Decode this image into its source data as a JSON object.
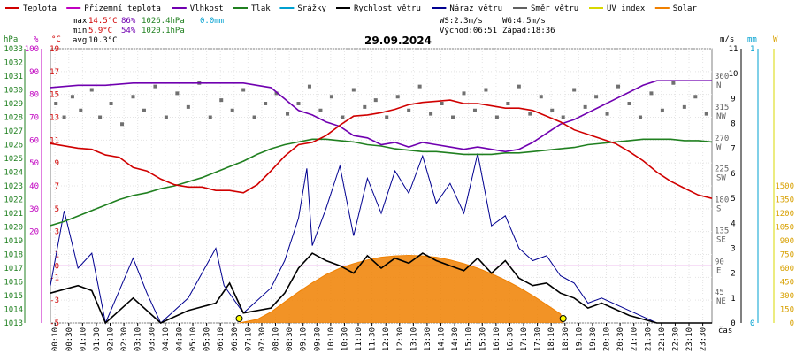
{
  "chart_data": {
    "type": "line",
    "title": "29.09.2024",
    "xlabel": "čas",
    "legend": [
      {
        "name": "Teplota",
        "color": "#d00000"
      },
      {
        "name": "Přízemní teplota",
        "color": "#c000c0"
      },
      {
        "name": "Vlhkost",
        "color": "#7000b0"
      },
      {
        "name": "Tlak",
        "color": "#208020"
      },
      {
        "name": "Srážky",
        "color": "#00a0d0"
      },
      {
        "name": "Rychlost větru",
        "color": "#000000"
      },
      {
        "name": "Náraz větru",
        "color": "#000090"
      },
      {
        "name": "Směr větru",
        "color": "#606060"
      },
      {
        "name": "UV index",
        "color": "#d8d800"
      },
      {
        "name": "Solar",
        "color": "#f08000"
      }
    ],
    "stats": {
      "max_temp": "14.5°C",
      "max_hum": "86%",
      "max_press": "1026.4hPa",
      "max_rain": "0.0mm",
      "min_temp": "5.9°C",
      "min_hum": "54%",
      "min_press": "1020.1hPa",
      "avg_temp": "10.3°C",
      "ws": "WS:2.3m/s",
      "wg": "WG:4.5m/s",
      "sunrise": "Východ:06:51",
      "sunset": "Západ:18:36",
      "max_label": "max",
      "min_label": "min",
      "avg_label": "avg"
    },
    "units": {
      "press": "hPa",
      "pct": "%",
      "temp": "°C",
      "ms": "m/s",
      "mm": "mm",
      "w": "W"
    },
    "x_ticks": [
      "00:10",
      "00:30",
      "01:10",
      "01:30",
      "02:10",
      "02:30",
      "03:10",
      "03:30",
      "04:10",
      "04:30",
      "05:10",
      "05:30",
      "06:10",
      "06:30",
      "07:10",
      "07:30",
      "08:10",
      "08:30",
      "09:10",
      "09:30",
      "10:10",
      "10:30",
      "11:10",
      "11:30",
      "12:10",
      "12:30",
      "13:10",
      "13:30",
      "14:10",
      "14:30",
      "15:10",
      "15:30",
      "16:10",
      "16:30",
      "17:10",
      "17:30",
      "18:10",
      "18:30",
      "19:10",
      "19:30",
      "20:10",
      "20:30",
      "21:10",
      "21:30",
      "22:10",
      "22:30",
      "23:10",
      "23:30"
    ],
    "axes": {
      "pressure": {
        "ticks": [
          1013,
          1014,
          1015,
          1016,
          1017,
          1018,
          1019,
          1020,
          1021,
          1022,
          1023,
          1024,
          1025,
          1026,
          1027,
          1028,
          1029,
          1030,
          1031,
          1032,
          1033
        ],
        "range": [
          1013,
          1033
        ]
      },
      "humidity": {
        "ticks": [
          20,
          30,
          40,
          50,
          60,
          70,
          80,
          90,
          100
        ],
        "range": [
          -20,
          100
        ]
      },
      "temperature": {
        "ticks": [
          -5,
          -3,
          -1,
          1,
          3,
          5,
          7,
          9,
          11,
          13,
          15,
          17,
          19
        ],
        "range": [
          -5,
          19
        ],
        "zero_label": "0"
      },
      "wind_dir": {
        "ticks": [
          "360 N",
          "315 NW",
          "270 W",
          "225 SW",
          "180 S",
          "135 SE",
          "90 E",
          "45 NE"
        ]
      },
      "wind_speed": {
        "ticks": [
          0,
          1,
          2,
          3,
          4,
          5,
          6,
          7,
          8,
          9,
          10,
          11
        ],
        "range": [
          0,
          11
        ]
      },
      "rain": {
        "ticks": [
          0,
          1
        ],
        "range": [
          0,
          1
        ]
      },
      "solar": {
        "ticks": [
          0,
          150,
          300,
          450,
          600,
          750,
          900,
          1050,
          1200,
          1350,
          1500
        ],
        "range": [
          0,
          1500
        ]
      }
    },
    "series": {
      "temperature": [
        [
          0,
          10.7
        ],
        [
          0.5,
          10.5
        ],
        [
          1,
          10.3
        ],
        [
          1.5,
          10.2
        ],
        [
          2,
          9.7
        ],
        [
          2.5,
          9.5
        ],
        [
          3,
          8.6
        ],
        [
          3.5,
          8.3
        ],
        [
          4,
          7.6
        ],
        [
          4.5,
          7.1
        ],
        [
          5,
          6.9
        ],
        [
          5.5,
          6.9
        ],
        [
          6,
          6.6
        ],
        [
          6.5,
          6.6
        ],
        [
          7,
          6.4
        ],
        [
          7.5,
          7.1
        ],
        [
          8,
          8.3
        ],
        [
          8.5,
          9.6
        ],
        [
          9,
          10.6
        ],
        [
          9.5,
          10.8
        ],
        [
          10,
          11.4
        ],
        [
          10.5,
          12.3
        ],
        [
          11,
          13.1
        ],
        [
          11.5,
          13.2
        ],
        [
          12,
          13.4
        ],
        [
          12.5,
          13.7
        ],
        [
          13,
          14.1
        ],
        [
          13.5,
          14.3
        ],
        [
          14,
          14.4
        ],
        [
          14.5,
          14.5
        ],
        [
          15,
          14.2
        ],
        [
          15.5,
          14.2
        ],
        [
          16,
          14.0
        ],
        [
          16.5,
          13.8
        ],
        [
          17,
          13.8
        ],
        [
          17.5,
          13.6
        ],
        [
          18,
          13.1
        ],
        [
          18.5,
          12.6
        ],
        [
          19,
          11.9
        ],
        [
          19.5,
          11.5
        ],
        [
          20,
          11.1
        ],
        [
          20.5,
          10.7
        ],
        [
          21,
          10.0
        ],
        [
          21.5,
          9.2
        ],
        [
          22,
          8.2
        ],
        [
          22.5,
          7.4
        ],
        [
          23,
          6.8
        ],
        [
          23.5,
          6.2
        ],
        [
          24,
          5.9
        ]
      ],
      "humidity": [
        [
          0,
          83
        ],
        [
          1,
          84
        ],
        [
          2,
          84
        ],
        [
          3,
          85
        ],
        [
          4,
          85
        ],
        [
          5,
          85
        ],
        [
          6,
          85
        ],
        [
          7,
          85
        ],
        [
          8,
          83
        ],
        [
          8.5,
          78
        ],
        [
          9,
          73
        ],
        [
          9.5,
          71
        ],
        [
          10,
          68
        ],
        [
          10.5,
          66
        ],
        [
          11,
          62
        ],
        [
          11.5,
          61
        ],
        [
          12,
          58
        ],
        [
          12.5,
          59
        ],
        [
          13,
          57
        ],
        [
          13.5,
          59
        ],
        [
          14,
          58
        ],
        [
          14.5,
          57
        ],
        [
          15,
          56
        ],
        [
          15.5,
          57
        ],
        [
          16,
          56
        ],
        [
          16.5,
          55
        ],
        [
          17,
          56
        ],
        [
          17.5,
          59
        ],
        [
          18,
          63
        ],
        [
          18.5,
          67
        ],
        [
          19,
          69
        ],
        [
          19.5,
          72
        ],
        [
          20,
          75
        ],
        [
          20.5,
          78
        ],
        [
          21,
          81
        ],
        [
          21.5,
          84
        ],
        [
          22,
          86
        ],
        [
          23,
          86
        ],
        [
          24,
          86
        ]
      ],
      "pressure": [
        [
          0,
          1020.1
        ],
        [
          0.5,
          1020.4
        ],
        [
          1,
          1020.8
        ],
        [
          1.5,
          1021.2
        ],
        [
          2,
          1021.6
        ],
        [
          2.5,
          1022.0
        ],
        [
          3,
          1022.3
        ],
        [
          3.5,
          1022.5
        ],
        [
          4,
          1022.8
        ],
        [
          4.5,
          1023.0
        ],
        [
          5,
          1023.3
        ],
        [
          5.5,
          1023.6
        ],
        [
          6,
          1024.0
        ],
        [
          6.5,
          1024.4
        ],
        [
          7,
          1024.8
        ],
        [
          7.5,
          1025.3
        ],
        [
          8,
          1025.7
        ],
        [
          8.5,
          1026.0
        ],
        [
          9,
          1026.2
        ],
        [
          9.5,
          1026.4
        ],
        [
          10,
          1026.4
        ],
        [
          10.5,
          1026.3
        ],
        [
          11,
          1026.2
        ],
        [
          11.5,
          1026.0
        ],
        [
          12,
          1025.9
        ],
        [
          12.5,
          1025.7
        ],
        [
          13,
          1025.6
        ],
        [
          13.5,
          1025.5
        ],
        [
          14,
          1025.5
        ],
        [
          14.5,
          1025.4
        ],
        [
          15,
          1025.3
        ],
        [
          15.5,
          1025.3
        ],
        [
          16,
          1025.3
        ],
        [
          16.5,
          1025.4
        ],
        [
          17,
          1025.4
        ],
        [
          17.5,
          1025.5
        ],
        [
          18,
          1025.6
        ],
        [
          18.5,
          1025.7
        ],
        [
          19,
          1025.8
        ],
        [
          19.5,
          1026.0
        ],
        [
          20,
          1026.1
        ],
        [
          20.5,
          1026.2
        ],
        [
          21,
          1026.3
        ],
        [
          21.5,
          1026.4
        ],
        [
          22,
          1026.4
        ],
        [
          22.5,
          1026.4
        ],
        [
          23,
          1026.3
        ],
        [
          23.5,
          1026.3
        ],
        [
          24,
          1026.2
        ]
      ],
      "wind_speed": [
        [
          0,
          1.2
        ],
        [
          1,
          1.5
        ],
        [
          1.5,
          1.3
        ],
        [
          2,
          0
        ],
        [
          3,
          1
        ],
        [
          4,
          0
        ],
        [
          5,
          0.5
        ],
        [
          6,
          0.8
        ],
        [
          6.5,
          1.6
        ],
        [
          7,
          0.4
        ],
        [
          8,
          0.6
        ],
        [
          8.5,
          1.2
        ],
        [
          9,
          2.2
        ],
        [
          9.5,
          2.8
        ],
        [
          10,
          2.5
        ],
        [
          10.5,
          2.3
        ],
        [
          11,
          2.0
        ],
        [
          11.5,
          2.7
        ],
        [
          12,
          2.2
        ],
        [
          12.5,
          2.6
        ],
        [
          13,
          2.4
        ],
        [
          13.5,
          2.8
        ],
        [
          14,
          2.5
        ],
        [
          14.5,
          2.3
        ],
        [
          15,
          2.1
        ],
        [
          15.5,
          2.6
        ],
        [
          16,
          2.0
        ],
        [
          16.5,
          2.5
        ],
        [
          17,
          1.8
        ],
        [
          17.5,
          1.5
        ],
        [
          18,
          1.6
        ],
        [
          18.5,
          1.2
        ],
        [
          19,
          1.0
        ],
        [
          19.5,
          0.6
        ],
        [
          20,
          0.8
        ],
        [
          21,
          0.3
        ],
        [
          22,
          0
        ],
        [
          24,
          0
        ]
      ],
      "wind_gust": [
        [
          0,
          1.5
        ],
        [
          0.5,
          4.5
        ],
        [
          1,
          2.2
        ],
        [
          1.5,
          2.8
        ],
        [
          2,
          0
        ],
        [
          3,
          2.6
        ],
        [
          3.5,
          1.2
        ],
        [
          4,
          0
        ],
        [
          5,
          1
        ],
        [
          6,
          3
        ],
        [
          6.3,
          1.5
        ],
        [
          7,
          0.4
        ],
        [
          8,
          1.4
        ],
        [
          8.5,
          2.5
        ],
        [
          9,
          4.2
        ],
        [
          9.3,
          6.2
        ],
        [
          9.5,
          3.1
        ],
        [
          10,
          4.6
        ],
        [
          10.5,
          6.3
        ],
        [
          11,
          3.5
        ],
        [
          11.5,
          5.8
        ],
        [
          12,
          4.4
        ],
        [
          12.5,
          6.1
        ],
        [
          13,
          5.2
        ],
        [
          13.5,
          6.7
        ],
        [
          14,
          4.8
        ],
        [
          14.5,
          5.6
        ],
        [
          15,
          4.4
        ],
        [
          15.5,
          6.8
        ],
        [
          16,
          3.9
        ],
        [
          16.5,
          4.3
        ],
        [
          17,
          3.0
        ],
        [
          17.5,
          2.5
        ],
        [
          18,
          2.7
        ],
        [
          18.5,
          1.9
        ],
        [
          19,
          1.6
        ],
        [
          19.5,
          0.8
        ],
        [
          20,
          1.0
        ],
        [
          21,
          0.5
        ],
        [
          22,
          0
        ],
        [
          24,
          0
        ]
      ],
      "solar": [
        [
          6.85,
          0
        ],
        [
          7.5,
          40
        ],
        [
          8,
          120
        ],
        [
          8.5,
          230
        ],
        [
          9,
          340
        ],
        [
          9.5,
          440
        ],
        [
          10,
          530
        ],
        [
          10.5,
          600
        ],
        [
          11,
          650
        ],
        [
          11.5,
          690
        ],
        [
          12,
          720
        ],
        [
          12.5,
          735
        ],
        [
          13,
          740
        ],
        [
          13.5,
          735
        ],
        [
          14,
          720
        ],
        [
          14.5,
          690
        ],
        [
          15,
          650
        ],
        [
          15.5,
          600
        ],
        [
          16,
          540
        ],
        [
          16.5,
          470
        ],
        [
          17,
          390
        ],
        [
          17.5,
          300
        ],
        [
          18,
          200
        ],
        [
          18.5,
          100
        ],
        [
          18.6,
          0
        ]
      ],
      "wind_dir_samples": [
        [
          0.2,
          320
        ],
        [
          0.5,
          300
        ],
        [
          0.8,
          330
        ],
        [
          1.1,
          310
        ],
        [
          1.5,
          340
        ],
        [
          1.8,
          300
        ],
        [
          2.2,
          320
        ],
        [
          2.6,
          290
        ],
        [
          3,
          330
        ],
        [
          3.4,
          310
        ],
        [
          3.8,
          345
        ],
        [
          4.2,
          300
        ],
        [
          4.6,
          335
        ],
        [
          5,
          315
        ],
        [
          5.4,
          350
        ],
        [
          5.8,
          300
        ],
        [
          6.2,
          325
        ],
        [
          6.6,
          310
        ],
        [
          7,
          340
        ],
        [
          7.4,
          300
        ],
        [
          7.8,
          320
        ],
        [
          8.2,
          335
        ],
        [
          8.6,
          305
        ],
        [
          9,
          320
        ],
        [
          9.4,
          345
        ],
        [
          9.8,
          310
        ],
        [
          10.2,
          330
        ],
        [
          10.6,
          300
        ],
        [
          11,
          340
        ],
        [
          11.4,
          315
        ],
        [
          11.8,
          325
        ],
        [
          12.2,
          300
        ],
        [
          12.6,
          330
        ],
        [
          13,
          310
        ],
        [
          13.4,
          345
        ],
        [
          13.8,
          305
        ],
        [
          14.2,
          320
        ],
        [
          14.6,
          300
        ],
        [
          15,
          335
        ],
        [
          15.4,
          310
        ],
        [
          15.8,
          340
        ],
        [
          16.2,
          300
        ],
        [
          16.6,
          320
        ],
        [
          17,
          345
        ],
        [
          17.4,
          305
        ],
        [
          17.8,
          330
        ],
        [
          18.2,
          310
        ],
        [
          18.6,
          300
        ],
        [
          19,
          340
        ],
        [
          19.4,
          315
        ],
        [
          19.8,
          330
        ],
        [
          20.2,
          305
        ],
        [
          20.6,
          345
        ],
        [
          21,
          320
        ],
        [
          21.4,
          300
        ],
        [
          21.8,
          335
        ],
        [
          22.2,
          310
        ],
        [
          22.6,
          350
        ],
        [
          23,
          315
        ],
        [
          23.4,
          330
        ],
        [
          23.8,
          305
        ]
      ]
    }
  }
}
